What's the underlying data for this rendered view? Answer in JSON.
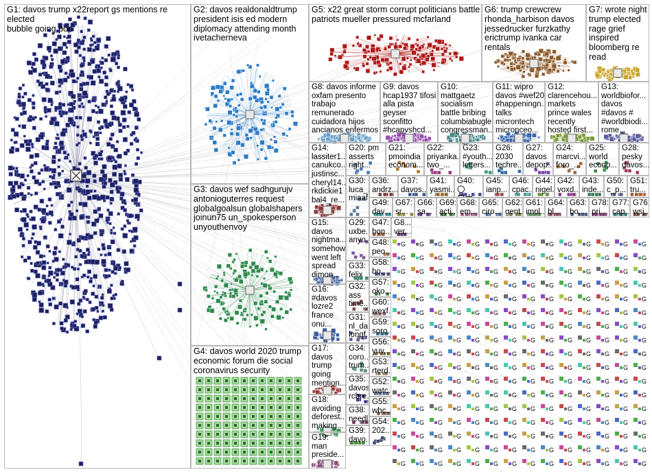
{
  "groups": [
    {
      "id": "G1",
      "label": "G1: davos trump x22report gs mentions re elected\nbubble going pop",
      "color": "#2a2f7a"
    },
    {
      "id": "G2",
      "label": "G2: davos realdonaldtrump\npresident isis ed modern\ndiplomacy attending month\nivetacherneva",
      "color": "#2b7bc8"
    },
    {
      "id": "G3",
      "label": "G3: davos wef sadhgurujv\nantonioguterres request\nglobalgoalsun globalshapers\njoinun75 un_spokesperson\nunyouthenvoy",
      "color": "#2f8a4e"
    },
    {
      "id": "G4",
      "label": "G4: davos world 2020 trump\neconomic forum die social\ncoronavirus security",
      "color": "#3c9a3c"
    },
    {
      "id": "G5",
      "label": "G5: x22 great storm corrupt politicians battle\npatriots mueller pressured mcfarland",
      "color": "#b01818"
    },
    {
      "id": "G6",
      "label": "G6: trump crewcrew\nrhonda_harbison davos\njessedrucker furzkathy\nerictrump ivanka car rentals",
      "color": "#8c5a2a"
    },
    {
      "id": "G7",
      "label": "G7: wrote night\ntrump elected\nrage grief\ninspired\nbloomberg re\nread",
      "color": "#c9a52a"
    },
    {
      "id": "G8",
      "label": "G8: davos informe\noxfam presento\ntrabajo\nremunerado\ncuidadora hijos\nancianos enfermos",
      "color": "#6aa0c8"
    },
    {
      "id": "G9",
      "label": "G9: davos\nhcap1937 tifosi\nalla pista\ngeyser\nsconfitto\n#hcapvshcd...",
      "color": "#9a4ab0"
    },
    {
      "id": "G10",
      "label": "G10:\nmattgaetz\nsocialism\nbattle bribing\ncolumbiabugle\ncongressman...",
      "color": "#4a8a8a"
    },
    {
      "id": "G11",
      "label": "G11: wipro\ndavos #wef20\n#happeningn...\ntalks\nmicrontech\nmicronceo...",
      "color": "#3a6ab0"
    },
    {
      "id": "G12",
      "label": "G12:\nclarencehou...\nmarkets\nprince wales\nrecently\nhosted first...",
      "color": "#7a9a3a"
    },
    {
      "id": "G13",
      "label": "G13:\nworldbiofor...\ndavos\n#davos #\n#worldbiodi...\nrome...",
      "color": "#5a5aa0"
    },
    {
      "id": "G14",
      "label": "G14:\nlassiter1...\ncanukco...\njustinsc...\ncheryl14...\nrkdickie1\nbal4_re...",
      "color": "#8a3a3a"
    },
    {
      "id": "G20",
      "label": "G20: pm\nasserts\nright...",
      "color": "#4a7ab0"
    },
    {
      "id": "G21",
      "label": "G21:\npmoindia\neconom...",
      "color": "#b07a2a"
    },
    {
      "id": "G22",
      "label": "G22:\npriyanka...\ntwo_...",
      "color": "#9a3a7a"
    },
    {
      "id": "G23",
      "label": "G23:\n#youth...\nletters...",
      "color": "#3a9a7a"
    },
    {
      "id": "G26",
      "label": "G26:\n2030\ntechre...",
      "color": "#2a6aa0"
    },
    {
      "id": "G27",
      "label": "G27:\ndavos\ndepop...",
      "color": "#7a4ab0"
    },
    {
      "id": "G24",
      "label": "G24:\nmarcvi...\nforo_...",
      "color": "#a06a3a"
    },
    {
      "id": "G25",
      "label": "G25:\nworld\necono...",
      "color": "#3a8a4a"
    },
    {
      "id": "G28",
      "label": "G28:\npesky\ndavos...",
      "color": "#a03a5a"
    },
    {
      "id": "G30",
      "label": "G30:\nluca_...\nmiaaf...",
      "color": "#5a7a9a"
    },
    {
      "id": "G36",
      "label": "G36:\nandrz...",
      "color": "#7a3a3a"
    },
    {
      "id": "G37",
      "label": "G37:\ndavos...",
      "color": "#3a5a8a"
    },
    {
      "id": "G41",
      "label": "G41:\nyasmi...",
      "color": "#8a6a2a"
    },
    {
      "id": "G40",
      "label": "G40: 〇\nロナウ...",
      "color": "#4a4a9a"
    },
    {
      "id": "G45",
      "label": "G45:\nianp...",
      "color": "#9a4a4a"
    },
    {
      "id": "G46",
      "label": "G46:\ncpac...",
      "color": "#4a9a9a"
    },
    {
      "id": "G44",
      "label": "G44:\nnigel...",
      "color": "#6a8a3a"
    },
    {
      "id": "G42",
      "label": "G42:\nvoxd...",
      "color": "#8a3a8a"
    },
    {
      "id": "G43",
      "label": "G43:\ninde...",
      "color": "#3a7a5a"
    },
    {
      "id": "G50",
      "label": "G50:\nc_p...",
      "color": "#5a5a8a"
    },
    {
      "id": "G51",
      "label": "G51:\ntru...",
      "color": "#a05a3a"
    },
    {
      "id": "G29",
      "label": "G29:\nuxbe...\nanyo...",
      "color": "#7a5aa0"
    },
    {
      "id": "G49",
      "label": "G49:\ndav...",
      "color": "#3a8a8a"
    },
    {
      "id": "G67",
      "label": "G67:\nsr...",
      "color": "#8a8a3a"
    },
    {
      "id": "G66",
      "label": "G66:\nsa...",
      "color": "#5a3a8a"
    },
    {
      "id": "G69",
      "label": "G69:\nacti...",
      "color": "#3a6a3a"
    },
    {
      "id": "G68",
      "label": "G68:\nem...",
      "color": "#9a5a7a"
    },
    {
      "id": "G65",
      "label": "G65:\nciro...",
      "color": "#4a6a9a"
    },
    {
      "id": "G62",
      "label": "G62:\ngent...",
      "color": "#7a7a4a"
    },
    {
      "id": "G61",
      "label": "G61:\nimpl...",
      "color": "#5a8a5a"
    },
    {
      "id": "G64",
      "label": "G64:\nbl...",
      "color": "#8a4a5a"
    },
    {
      "id": "G63",
      "label": "G63:\nbo...",
      "color": "#4a5a7a"
    },
    {
      "id": "G78",
      "label": "G78:\npri...",
      "color": "#7a3a6a"
    },
    {
      "id": "G77",
      "label": "G77:\ncap...",
      "color": "#3a7a7a"
    },
    {
      "id": "G76",
      "label": "G76:\nwsj...",
      "color": "#6a4a3a"
    },
    {
      "id": "G15",
      "label": "G15:\ndavos\nnightma...\nsomehow\nwent left\nspread\ndimon...",
      "color": "#4a6aa0"
    },
    {
      "id": "G47",
      "label": "G47:\nhon...",
      "color": "#8a5a3a"
    },
    {
      "id": "G8x",
      "label": "G8...\nver...",
      "color": "#5a3a6a"
    },
    {
      "id": "G33",
      "label": "G33:\nfelix\nsalm...",
      "color": "#3a8a6a"
    },
    {
      "id": "G48",
      "label": "G48:\npeo...",
      "color": "#9a6a4a"
    },
    {
      "id": "G58",
      "label": "G58:\nbo...",
      "color": "#4a4a7a"
    },
    {
      "id": "G16",
      "label": "G16:\n#davos\nlozre2\nfrance\nonu...",
      "color": "#3a5aa0"
    },
    {
      "id": "G32",
      "label": "G32:\nass\ntime...",
      "color": "#7a4a4a"
    },
    {
      "id": "G57",
      "label": "G57:\noko...",
      "color": "#4a7a4a"
    },
    {
      "id": "G31",
      "label": "G31:\nnl_da...\nlongf...",
      "color": "#6a5a9a"
    },
    {
      "id": "G60",
      "label": "G60:\nwexf...",
      "color": "#8a6a6a"
    },
    {
      "id": "G59",
      "label": "G59:\nsoro...",
      "color": "#3a6a8a"
    },
    {
      "id": "G17",
      "label": "G17:\ndavos\ntrump\ngoing\nmention...",
      "color": "#9a3a3a"
    },
    {
      "id": "G34",
      "label": "G34:\ncoro...\ntrum...",
      "color": "#5a8a7a"
    },
    {
      "id": "G56",
      "label": "G56:\nyuv...",
      "color": "#7a6a3a"
    },
    {
      "id": "G35",
      "label": "G35:\ndavos\nrcbre...",
      "color": "#4a3a8a"
    },
    {
      "id": "G53",
      "label": "G53:\nrterd...",
      "color": "#8a7a5a"
    },
    {
      "id": "G18",
      "label": "G18:\navoiding\ndeforest...\nmaking...",
      "color": "#3a9a5a"
    },
    {
      "id": "G38",
      "label": "G38:\nneedl...",
      "color": "#6a3a5a"
    },
    {
      "id": "G52",
      "label": "G52:\nwatc...",
      "color": "#5a6a8a"
    },
    {
      "id": "G19",
      "label": "G19:\nman\npreside...",
      "color": "#8a4a7a"
    },
    {
      "id": "G39",
      "label": "G39:\ndavo...",
      "color": "#4a8a3a"
    },
    {
      "id": "G55",
      "label": "G55:\nwhc...",
      "color": "#7a5a4a"
    },
    {
      "id": "G54",
      "label": "G54:\n202...",
      "color": "#3a4a6a"
    }
  ]
}
